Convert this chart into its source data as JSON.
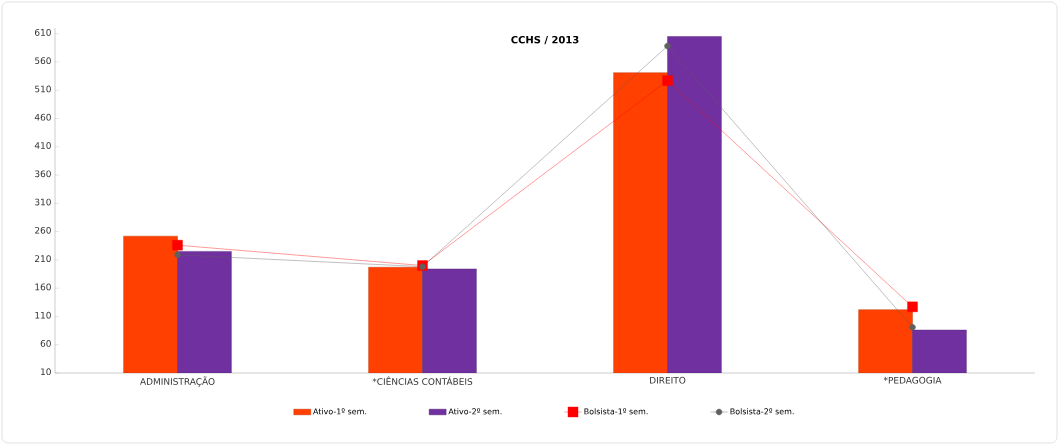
{
  "chart_data": {
    "type": "bar",
    "title": "CCHS / 2013",
    "categories": [
      "ADMINISTRAÇÃO",
      "*CIÊNCIAS CONTÁBEIS",
      "DIREITO",
      "*PEDAGOGIA"
    ],
    "series": [
      {
        "name": "Ativo-1º sem.",
        "color": "#ff4000",
        "values": [
          252,
          197,
          541,
          122
        ]
      },
      {
        "name": "Ativo-2º sem.",
        "color": "#7030a0",
        "values": [
          225,
          194,
          605,
          86
        ]
      },
      {
        "name": "Bolsista-1º sem.",
        "type": "line",
        "color": "#ff0000",
        "marker": "square",
        "values": [
          236,
          200,
          527,
          127
        ]
      },
      {
        "name": "Bolsista-2º sem.",
        "type": "line",
        "color": "#606060",
        "marker": "circle",
        "values": [
          219,
          198,
          588,
          91
        ]
      }
    ],
    "ylim": [
      10,
      620
    ],
    "yticks": [
      10,
      60,
      110,
      160,
      210,
      260,
      310,
      360,
      410,
      460,
      510,
      560,
      610
    ],
    "grid": false,
    "legend": "bottom"
  }
}
